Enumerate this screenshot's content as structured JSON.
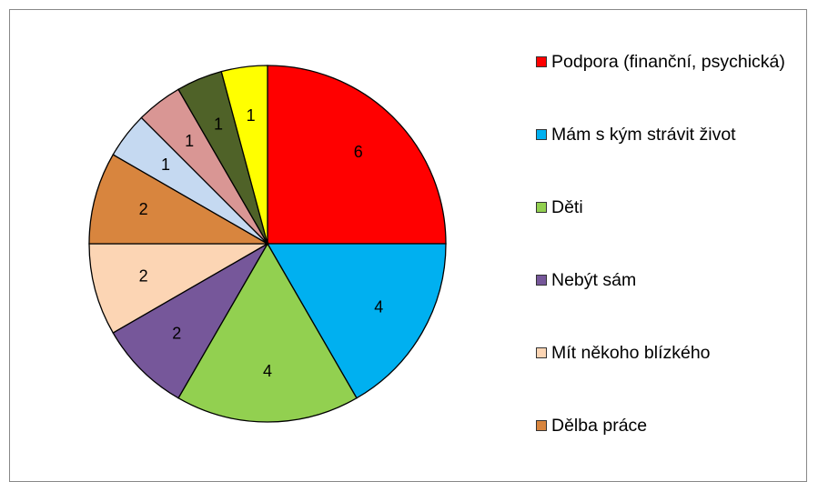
{
  "chart_data": {
    "type": "pie",
    "categories": [
      "Podpora (finanční, psychická)",
      "Mám s kým strávit život",
      "Děti",
      "Nebýt sám",
      "Mít někoho blízkého",
      "Dělba práce",
      null,
      null,
      null,
      null
    ],
    "values": [
      6,
      4,
      4,
      2,
      2,
      2,
      1,
      1,
      1,
      1
    ],
    "colors": [
      "#ff0000",
      "#00b0f0",
      "#92d050",
      "#76579a",
      "#fcd5b4",
      "#d8853e",
      "#c5d9f1",
      "#d99694",
      "#4f6228",
      "#ffff00"
    ],
    "legend": "right"
  }
}
